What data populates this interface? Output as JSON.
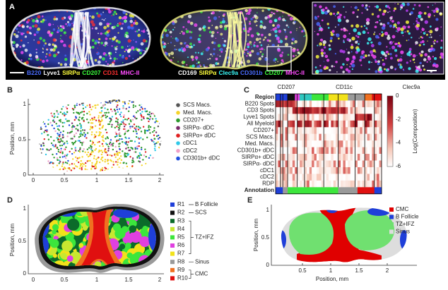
{
  "figure": {
    "a": {
      "label": "A",
      "left_channels": [
        {
          "text": "B220",
          "color": "#4a6cff"
        },
        {
          "text": "Lyve1",
          "color": "#ffffff"
        },
        {
          "text": "SIRPα",
          "color": "#ffff3c"
        },
        {
          "text": "CD207",
          "color": "#3cff3c"
        },
        {
          "text": "CD31",
          "color": "#ff3030"
        },
        {
          "text": "MHC-II",
          "color": "#ff4cff"
        }
      ],
      "middle_channels": [
        {
          "text": "CD169",
          "color": "#ffffff"
        },
        {
          "text": "SIRPα",
          "color": "#ffff3c"
        },
        {
          "text": "Clec9a",
          "color": "#3cffff"
        },
        {
          "text": "CD301b",
          "color": "#4a6cff"
        },
        {
          "text": "CD207",
          "color": "#3cff3c"
        },
        {
          "text": "MHC-II",
          "color": "#ff4cff"
        }
      ]
    },
    "b": {
      "label": "B",
      "y_label": "Position, mm",
      "x_ticks": [
        0,
        0.5,
        1,
        1.5,
        2
      ],
      "y_ticks": [
        0,
        0.5,
        1
      ],
      "legend": [
        {
          "name": "SCS Macs.",
          "color": "#555555"
        },
        {
          "name": "Med. Macs.",
          "color": "#f5d42a"
        },
        {
          "name": "CD207+",
          "color": "#2e9a2e"
        },
        {
          "name": "SIRPα- dDC",
          "color": "#7a2a6a"
        },
        {
          "name": "SIRPα+ dDC",
          "color": "#e02020"
        },
        {
          "name": "cDC1",
          "color": "#30c8e8"
        },
        {
          "name": "cDC2",
          "color": "#f0a0c8"
        },
        {
          "name": "CD301b+ dDC",
          "color": "#2050e0"
        }
      ]
    },
    "c": {
      "label": "C",
      "column_groups": [
        "CD207",
        "CD11c",
        "Clec9a"
      ],
      "rows": [
        "Region",
        "B220 Spots",
        "CD3 Spots",
        "Lyve1 Spots",
        "All Myeloid",
        "CD207+",
        "SCS Macs.",
        "Med. Macs.",
        "CD301b+ dDC",
        "SIRPα+ dDC",
        "SIRPα- dDC",
        "cDC1",
        "cDC2",
        "RDP",
        "Annotation"
      ],
      "colorbar_ticks": [
        0,
        -2,
        -4,
        -6
      ],
      "colorbar_label": "Log(Composition)"
    },
    "d": {
      "label": "D",
      "y_label": "Position, mm",
      "x_ticks": [
        0,
        0.5,
        1,
        1.5,
        2
      ],
      "y_ticks": [
        0,
        0.5,
        1
      ],
      "regions": [
        {
          "name": "R1",
          "color": "#1f3fd9"
        },
        {
          "name": "R2",
          "color": "#111111"
        },
        {
          "name": "R3",
          "color": "#0b6b2a"
        },
        {
          "name": "R4",
          "color": "#c8e830"
        },
        {
          "name": "R5",
          "color": "#3ce63c"
        },
        {
          "name": "R6",
          "color": "#e040e0"
        },
        {
          "name": "R7",
          "color": "#f2e21a"
        },
        {
          "name": "R8",
          "color": "#9a9a9a"
        },
        {
          "name": "R9",
          "color": "#f07020"
        },
        {
          "name": "R10",
          "color": "#e01010"
        }
      ],
      "groups": [
        "B Follicle",
        "SCS",
        "TZ+IFZ",
        "Sinus",
        "CMC"
      ]
    },
    "e": {
      "label": "E",
      "x_label": "Position, mm",
      "y_label": "Position, mm",
      "x_ticks": [
        0.5,
        1,
        1.5,
        2
      ],
      "y_ticks": [
        0,
        0.5,
        1
      ],
      "legend": [
        {
          "name": "CMC",
          "color": "#e00000"
        },
        {
          "name": "B Follicle",
          "color": "#1f3fd9"
        },
        {
          "name": "TZ+IFZ",
          "color": "#70e070"
        },
        {
          "name": "Sinus",
          "color": "#dddddd"
        }
      ]
    }
  }
}
